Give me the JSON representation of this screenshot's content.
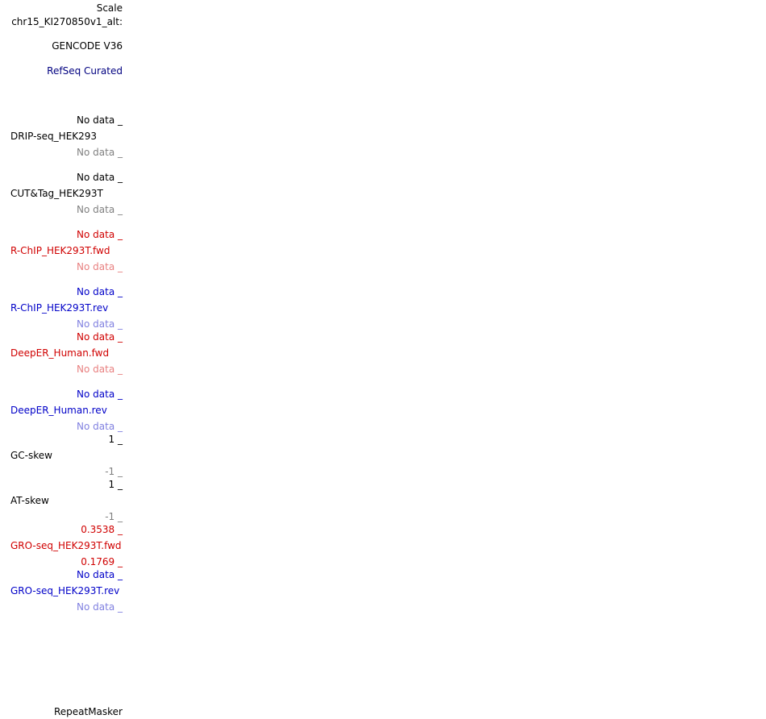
{
  "colors": {
    "black": "#000000",
    "gray": "#808080",
    "navy": "#000080",
    "blue": "#0000c8",
    "light_blue": "#8080e0",
    "red": "#d00000",
    "light_red": "#e88080"
  },
  "header": {
    "scale": "Scale",
    "chromosome": "chr15_KI270850v1_alt:",
    "gencode": "GENCODE V36",
    "refseq": "RefSeq Curated"
  },
  "tracks": [
    {
      "top": "No data _",
      "name": "DRIP-seq_HEK293",
      "bottom": "No data _"
    },
    {
      "top": "No data _",
      "name": "CUT&Tag_HEK293T",
      "bottom": "No data _"
    },
    {
      "top": "No data _",
      "name": "R-ChIP_HEK293T.fwd",
      "bottom": "No data _"
    },
    {
      "top": "No data _",
      "name": "R-ChIP_HEK293T.rev",
      "bottom": "No data _"
    },
    {
      "top": "No data _",
      "name": "DeepER_Human.fwd",
      "bottom": "No data _"
    },
    {
      "top": "No data _",
      "name": "DeepER_Human.rev",
      "bottom": "No data _"
    },
    {
      "top": "1 _",
      "name": "GC-skew",
      "bottom": "-1 _"
    },
    {
      "top": "1 _",
      "name": "AT-skew",
      "bottom": "-1 _"
    },
    {
      "top": "0.3538 _",
      "name": "GRO-seq_HEK293T.fwd",
      "bottom": "0.1769 _"
    },
    {
      "top": "No data _",
      "name": "GRO-seq_HEK293T.rev",
      "bottom": "No data _"
    }
  ],
  "footer": {
    "repeatmasker": "RepeatMasker"
  }
}
